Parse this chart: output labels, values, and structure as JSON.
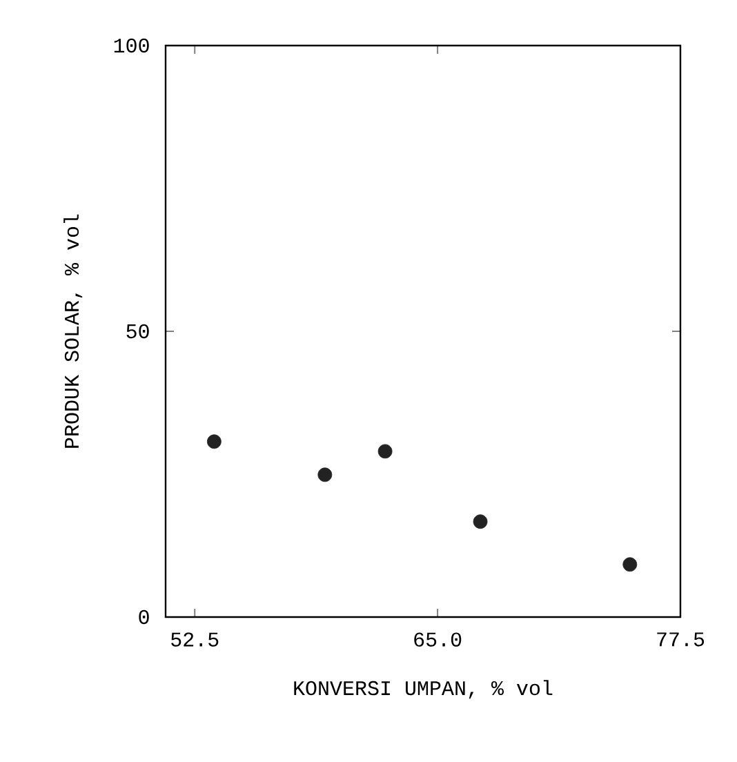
{
  "chart_data": {
    "type": "scatter",
    "xlabel": "KONVERSI UMPAN, % vol",
    "ylabel": "PRODUK SOLAR, % vol",
    "x": [
      53.5,
      59.2,
      62.3,
      67.2,
      74.9
    ],
    "values": [
      30.7,
      24.9,
      29.0,
      16.7,
      9.2
    ],
    "color": "#222222",
    "marker": "circle",
    "xlim": [
      51,
      77.5
    ],
    "ylim": [
      0,
      100
    ],
    "xticks": [
      52.5,
      {
        "value": 65,
        "label": "65.0"
      },
      77.5
    ],
    "yticks": [
      0,
      50,
      100
    ],
    "grid": false
  }
}
